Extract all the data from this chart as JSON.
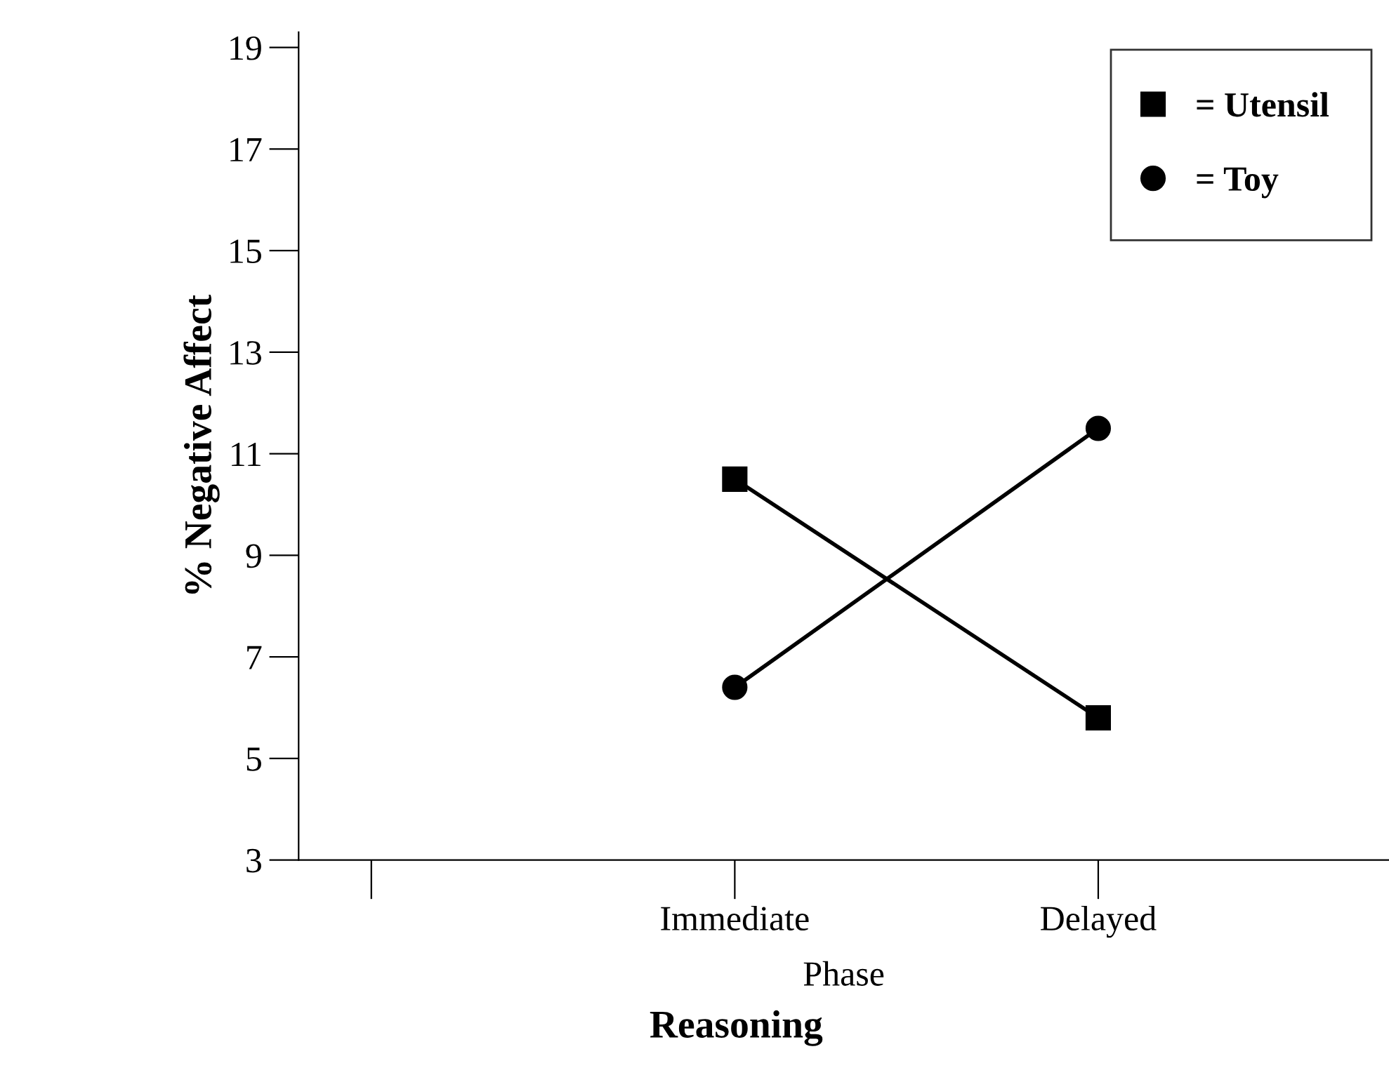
{
  "chart_data": {
    "type": "line",
    "title": "Reasoning",
    "xlabel": "Phase",
    "ylabel": "% Negative Affect",
    "categories": [
      null,
      "Immediate",
      "Delayed"
    ],
    "series": [
      {
        "name": "= Utensil",
        "color": "#000000",
        "marker": "square",
        "values": [
          null,
          10.5,
          5.8
        ]
      },
      {
        "name": "= Toy",
        "color": "#000000",
        "marker": "circle",
        "values": [
          null,
          6.4,
          11.5
        ]
      }
    ],
    "ylim": [
      3,
      19.3
    ],
    "yticks": [
      3,
      5,
      7,
      9,
      11,
      13,
      15,
      17,
      19
    ],
    "grid": false,
    "legend": "top right",
    "line_style": "solid"
  }
}
